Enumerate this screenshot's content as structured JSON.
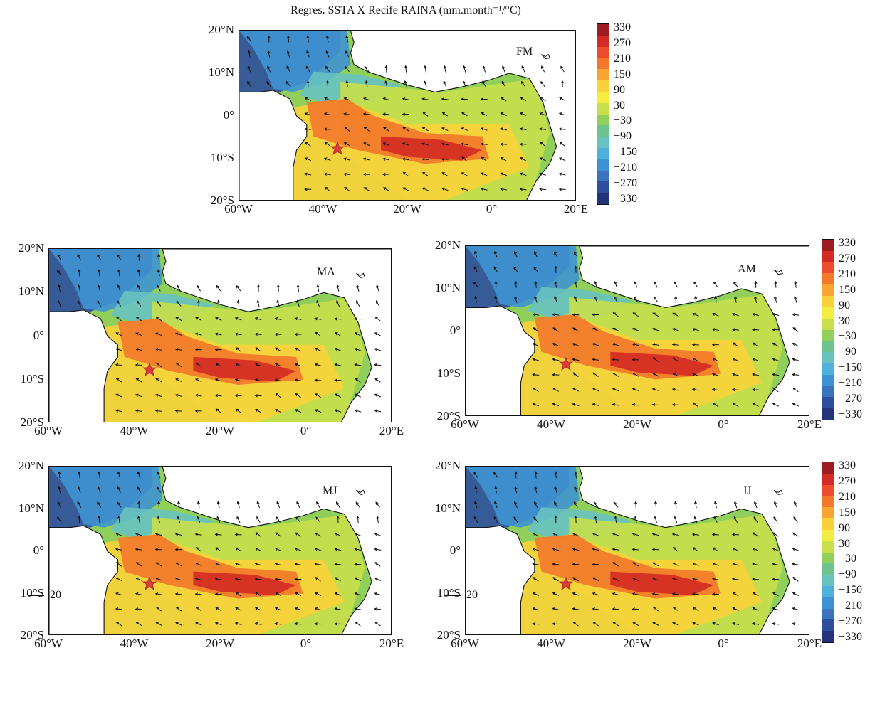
{
  "title": "Regres. SSTA X Recife RAINA (mm.month⁻¹/°C)",
  "lat_labels": [
    "20°N",
    "10°N",
    "0°",
    "10°S",
    "20°S"
  ],
  "lon_labels": [
    "60°W",
    "40°W",
    "20°W",
    "0°",
    "20°E"
  ],
  "colorbar": {
    "labels": [
      "330",
      "270",
      "210",
      "150",
      "90",
      "30",
      "−30",
      "−90",
      "−150",
      "−210",
      "−270",
      "−330"
    ],
    "colors": [
      "#9e1b1f",
      "#d42a25",
      "#ec4d2a",
      "#f3782b",
      "#f8a532",
      "#fbd139",
      "#f4ec3e",
      "#c8df4a",
      "#8fcf5a",
      "#6ec28e",
      "#67c2c0",
      "#4fb1d9",
      "#3f92d1",
      "#3b73bd",
      "#2d4e9c",
      "#23337a"
    ]
  },
  "panels": [
    {
      "id": "fm",
      "season": "FM"
    },
    {
      "id": "ma",
      "season": "MA"
    },
    {
      "id": "am",
      "season": "AM"
    },
    {
      "id": "mj",
      "season": "MJ"
    },
    {
      "id": "jj",
      "season": "JJ"
    }
  ],
  "reference_vector": {
    "value": "20"
  }
}
